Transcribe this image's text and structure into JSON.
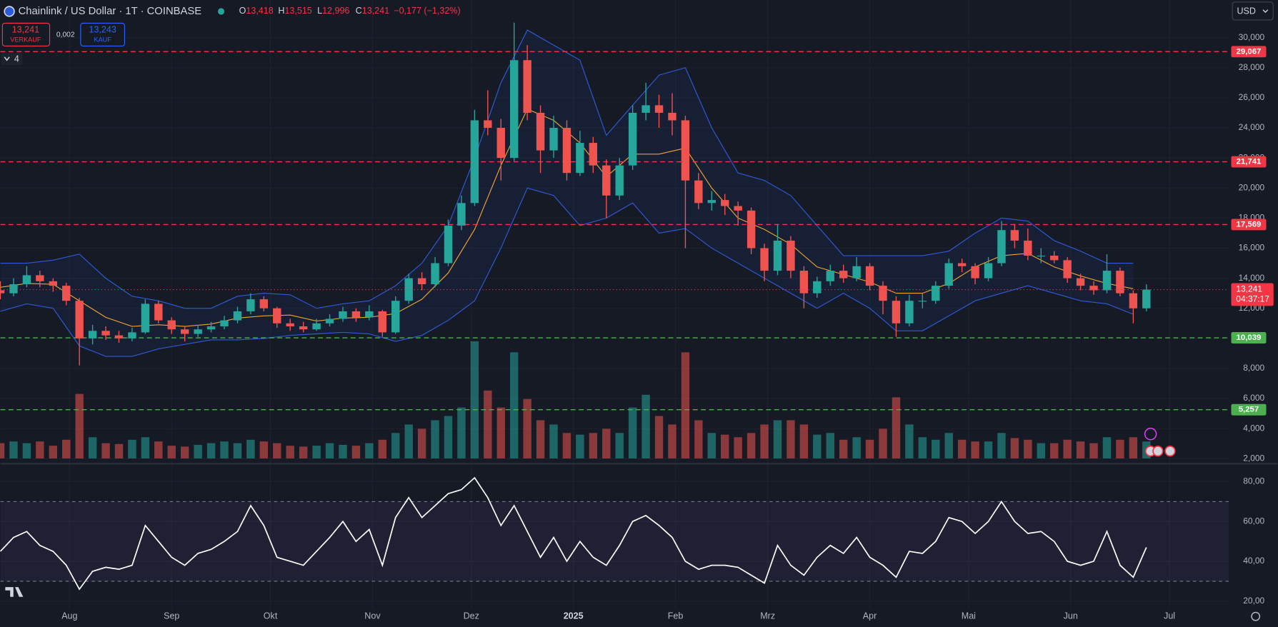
{
  "header": {
    "symbol": "Chainlink / US Dollar · 1T · COINBASE",
    "o_label": "O",
    "open": "13,418",
    "h_label": "H",
    "high": "13,515",
    "l_label": "L",
    "low": "12,996",
    "c_label": "C",
    "close": "13,241",
    "change": "−0,177 (−1,32%)"
  },
  "trade": {
    "sell_price": "13,241",
    "sell_label": "VERKAUF",
    "spread": "0,002",
    "buy_price": "13,243",
    "buy_label": "KAUF"
  },
  "indicators_count": "4",
  "currency": "USD",
  "chart_data": [
    {
      "type": "candlestick",
      "up_color": "#26a69a",
      "down_color": "#ef5350",
      "xlim": [
        0,
        373
      ],
      "ylim": [
        1.8,
        32.5
      ],
      "yticks": [
        {
          "value": 2,
          "label": "2,000"
        },
        {
          "value": 4,
          "label": "4,000"
        },
        {
          "value": 6,
          "label": "6,000"
        },
        {
          "value": 8,
          "label": "8,000"
        },
        {
          "value": 10,
          "label": "10,000"
        },
        {
          "value": 12,
          "label": "12,000"
        },
        {
          "value": 14,
          "label": "14,000"
        },
        {
          "value": 16,
          "label": "16,000"
        },
        {
          "value": 18,
          "label": "18,000"
        },
        {
          "value": 20,
          "label": "20,000"
        },
        {
          "value": 22,
          "label": "22,000"
        },
        {
          "value": 24,
          "label": "24,000"
        },
        {
          "value": 26,
          "label": "26,000"
        },
        {
          "value": 28,
          "label": "28,000"
        },
        {
          "value": 30,
          "label": "30,000"
        }
      ],
      "x": [
        0,
        4,
        8,
        12,
        16,
        20,
        24,
        28,
        32,
        36,
        40,
        44,
        48,
        52,
        56,
        60,
        64,
        68,
        72,
        76,
        80,
        84,
        88,
        92,
        96,
        100,
        104,
        108,
        112,
        116,
        120,
        124,
        128,
        132,
        136,
        140,
        144,
        148,
        152,
        156,
        160,
        164,
        168,
        172,
        176,
        180,
        184,
        188,
        192,
        196,
        200,
        204,
        208,
        212,
        216,
        220,
        224,
        228,
        232,
        236,
        240,
        244,
        248,
        252,
        256,
        260,
        264,
        268,
        272,
        276,
        280,
        284,
        288,
        292,
        296,
        300,
        304,
        308,
        312,
        316,
        320,
        324,
        328,
        332,
        336,
        340,
        344,
        348
      ],
      "ohlc": [
        [
          13.2,
          13.8,
          12.6,
          13.0
        ],
        [
          13.0,
          14.0,
          12.8,
          13.6
        ],
        [
          13.6,
          14.8,
          13.4,
          14.2
        ],
        [
          14.2,
          14.5,
          13.4,
          13.8
        ],
        [
          13.8,
          14.0,
          13.1,
          13.5
        ],
        [
          13.5,
          13.7,
          12.2,
          12.5
        ],
        [
          12.5,
          12.7,
          8.2,
          10.0
        ],
        [
          10.0,
          10.9,
          9.6,
          10.5
        ],
        [
          10.5,
          10.8,
          9.9,
          10.2
        ],
        [
          10.2,
          10.5,
          9.7,
          10.0
        ],
        [
          10.0,
          10.7,
          9.8,
          10.4
        ],
        [
          10.4,
          12.6,
          10.3,
          12.3
        ],
        [
          12.3,
          12.5,
          11.0,
          11.2
        ],
        [
          11.2,
          11.4,
          10.3,
          10.6
        ],
        [
          10.6,
          10.8,
          9.8,
          10.3
        ],
        [
          10.3,
          10.9,
          10.1,
          10.6
        ],
        [
          10.6,
          11.1,
          10.4,
          10.8
        ],
        [
          10.8,
          11.5,
          10.6,
          11.2
        ],
        [
          11.2,
          12.1,
          11.0,
          11.8
        ],
        [
          11.8,
          13.0,
          11.6,
          12.6
        ],
        [
          12.6,
          12.8,
          11.8,
          12.0
        ],
        [
          12.0,
          12.1,
          10.7,
          11.0
        ],
        [
          11.0,
          11.3,
          10.5,
          10.8
        ],
        [
          10.8,
          11.1,
          10.4,
          10.6
        ],
        [
          10.6,
          11.3,
          10.5,
          11.0
        ],
        [
          11.0,
          11.6,
          10.8,
          11.3
        ],
        [
          11.3,
          12.1,
          11.1,
          11.8
        ],
        [
          11.8,
          12.0,
          11.1,
          11.4
        ],
        [
          11.4,
          12.2,
          11.2,
          11.8
        ],
        [
          11.8,
          11.9,
          10.1,
          10.4
        ],
        [
          10.4,
          12.8,
          10.3,
          12.5
        ],
        [
          12.5,
          14.3,
          12.3,
          14.0
        ],
        [
          14.0,
          14.4,
          13.2,
          13.6
        ],
        [
          13.6,
          15.4,
          13.4,
          15.0
        ],
        [
          15.0,
          17.9,
          14.8,
          17.5
        ],
        [
          17.5,
          19.5,
          17.2,
          19.0
        ],
        [
          19.0,
          25.2,
          18.8,
          24.5
        ],
        [
          24.5,
          26.5,
          23.5,
          24.0
        ],
        [
          24.0,
          24.6,
          20.5,
          22.0
        ],
        [
          22.0,
          31.0,
          21.8,
          28.5
        ],
        [
          28.5,
          29.5,
          24.5,
          25.0
        ],
        [
          25.0,
          25.5,
          21.0,
          22.5
        ],
        [
          22.5,
          24.8,
          22.0,
          24.0
        ],
        [
          24.0,
          24.5,
          20.5,
          21.0
        ],
        [
          21.0,
          23.8,
          20.8,
          23.0
        ],
        [
          23.0,
          23.4,
          21.0,
          21.5
        ],
        [
          21.5,
          21.9,
          18.0,
          19.5
        ],
        [
          19.5,
          22.0,
          19.2,
          21.5
        ],
        [
          21.5,
          25.5,
          21.2,
          25.0
        ],
        [
          25.0,
          27.0,
          24.5,
          25.5
        ],
        [
          25.5,
          26.2,
          24.0,
          25.0
        ],
        [
          25.0,
          26.3,
          23.5,
          24.5
        ],
        [
          24.5,
          24.8,
          16.0,
          20.5
        ],
        [
          20.5,
          21.0,
          18.6,
          19.0
        ],
        [
          19.0,
          19.8,
          18.5,
          19.2
        ],
        [
          19.2,
          19.6,
          18.2,
          18.8
        ],
        [
          18.8,
          19.1,
          17.5,
          18.5
        ],
        [
          18.5,
          18.7,
          15.6,
          16.0
        ],
        [
          16.0,
          16.3,
          13.8,
          14.5
        ],
        [
          14.5,
          17.6,
          14.2,
          16.5
        ],
        [
          16.5,
          16.8,
          14.0,
          14.5
        ],
        [
          14.5,
          14.8,
          12.0,
          13.0
        ],
        [
          13.0,
          14.1,
          12.7,
          13.8
        ],
        [
          13.8,
          14.9,
          13.5,
          14.5
        ],
        [
          14.5,
          14.9,
          13.7,
          14.0
        ],
        [
          14.0,
          15.4,
          13.8,
          14.8
        ],
        [
          14.8,
          15.0,
          13.2,
          13.5
        ],
        [
          13.5,
          13.8,
          11.6,
          12.5
        ],
        [
          12.5,
          12.8,
          10.1,
          11.0
        ],
        [
          11.0,
          12.9,
          10.8,
          12.5
        ],
        [
          12.5,
          13.0,
          12.0,
          12.5
        ],
        [
          12.5,
          13.8,
          12.3,
          13.5
        ],
        [
          13.5,
          15.3,
          13.3,
          15.0
        ],
        [
          15.0,
          15.3,
          14.4,
          14.8
        ],
        [
          14.8,
          15.0,
          13.6,
          14.0
        ],
        [
          14.0,
          15.4,
          13.8,
          15.0
        ],
        [
          15.0,
          17.8,
          14.8,
          17.2
        ],
        [
          17.2,
          17.6,
          16.0,
          16.5
        ],
        [
          16.5,
          17.3,
          15.2,
          15.5
        ],
        [
          15.5,
          16.0,
          15.0,
          15.5
        ],
        [
          15.5,
          15.8,
          15.0,
          15.2
        ],
        [
          15.2,
          15.4,
          13.7,
          14.0
        ],
        [
          14.0,
          14.3,
          13.2,
          13.5
        ],
        [
          13.5,
          13.8,
          12.9,
          13.2
        ],
        [
          13.2,
          15.6,
          13.0,
          14.5
        ],
        [
          14.5,
          14.7,
          12.8,
          13.0
        ],
        [
          13.0,
          13.2,
          11.0,
          12.0
        ],
        [
          12.0,
          13.6,
          11.8,
          13.241
        ]
      ],
      "volume": {
        "ylim": [
          0,
          540
        ],
        "values": [
          18,
          20,
          18,
          20,
          15,
          22,
          76,
          25,
          18,
          17,
          22,
          25,
          20,
          15,
          14,
          16,
          18,
          20,
          18,
          22,
          20,
          18,
          15,
          14,
          15,
          18,
          16,
          15,
          18,
          22,
          30,
          40,
          35,
          45,
          50,
          60,
          138,
          80,
          60,
          125,
          70,
          45,
          40,
          30,
          28,
          30,
          35,
          30,
          60,
          75,
          50,
          40,
          125,
          45,
          30,
          28,
          25,
          30,
          40,
          45,
          45,
          40,
          28,
          30,
          22,
          25,
          22,
          35,
          72,
          40,
          25,
          22,
          30,
          22,
          20,
          20,
          30,
          24,
          22,
          18,
          18,
          22,
          20,
          18,
          25,
          22,
          25,
          20
        ]
      },
      "band": {
        "color": "#2f5bd8",
        "mid_color": "#f0a32e",
        "fill": "#2962ff",
        "x": [
          0,
          8,
          16,
          24,
          32,
          40,
          48,
          56,
          64,
          72,
          80,
          88,
          96,
          104,
          112,
          120,
          128,
          136,
          144,
          152,
          160,
          168,
          176,
          184,
          192,
          200,
          208,
          216,
          224,
          232,
          240,
          248,
          256,
          264,
          272,
          280,
          288,
          296,
          304,
          312,
          320,
          328,
          336,
          344
        ],
        "upper": [
          15.0,
          15.0,
          15.2,
          15.6,
          14.0,
          12.8,
          12.5,
          12.0,
          12.0,
          12.8,
          13.0,
          12.9,
          12.0,
          12.3,
          12.5,
          13.5,
          15.0,
          17.5,
          22.0,
          27.0,
          30.5,
          29.5,
          28.5,
          23.5,
          25.5,
          27.5,
          28.0,
          24.0,
          21.0,
          20.5,
          19.5,
          17.5,
          15.5,
          15.5,
          15.5,
          15.5,
          15.8,
          17.0,
          18.0,
          17.8,
          16.5,
          15.8,
          15.0,
          15.0
        ],
        "lower": [
          11.8,
          12.3,
          12.0,
          9.5,
          8.8,
          8.8,
          9.3,
          9.6,
          9.9,
          9.9,
          10.0,
          10.2,
          10.3,
          10.4,
          10.3,
          9.8,
          10.2,
          11.2,
          12.5,
          16.0,
          20.0,
          19.5,
          17.5,
          18.0,
          19.0,
          17.0,
          17.3,
          16.0,
          15.0,
          14.0,
          13.0,
          12.0,
          13.0,
          12.0,
          10.5,
          10.5,
          11.5,
          12.5,
          13.0,
          13.5,
          13.0,
          12.5,
          12.3,
          11.6
        ],
        "mid": [
          13.4,
          13.65,
          13.6,
          12.5,
          11.4,
          10.8,
          10.9,
          10.8,
          10.95,
          11.35,
          11.5,
          11.55,
          11.15,
          11.35,
          11.4,
          11.65,
          12.6,
          14.35,
          17.25,
          21.5,
          25.25,
          24.5,
          23.0,
          20.75,
          22.25,
          22.25,
          22.65,
          20.0,
          18.0,
          17.25,
          16.25,
          14.75,
          14.25,
          13.75,
          13.0,
          13.0,
          13.65,
          14.75,
          15.5,
          15.65,
          14.75,
          14.15,
          13.65,
          13.3
        ]
      },
      "levels": [
        {
          "value": 29.067,
          "label": "29,067",
          "color": "#f23645"
        },
        {
          "value": 21.741,
          "label": "21,741",
          "color": "#f23645"
        },
        {
          "value": 17.569,
          "label": "17,569",
          "color": "#f23645"
        },
        {
          "value": 10.039,
          "label": "10,039",
          "color": "#4caf50"
        },
        {
          "value": 5.257,
          "label": "5,257",
          "color": "#4caf50"
        }
      ],
      "last": {
        "value": 13.241,
        "label": "13,241",
        "countdown": "04:37:17",
        "color": "#f23645"
      }
    },
    {
      "type": "line",
      "color": "#ffffff",
      "band_color": "#7e57c2",
      "bands": [
        30,
        70
      ],
      "xlim": [
        0,
        373
      ],
      "ylim": [
        16,
        88
      ],
      "yticks": [
        {
          "value": 20,
          "label": "20,00"
        },
        {
          "value": 40,
          "label": "40,00"
        },
        {
          "value": 60,
          "label": "60,00"
        },
        {
          "value": 80,
          "label": "80,00"
        }
      ],
      "xticks": [
        {
          "value": 21,
          "label": "Aug"
        },
        {
          "value": 52,
          "label": "Sep"
        },
        {
          "value": 82,
          "label": "Okt"
        },
        {
          "value": 113,
          "label": "Nov"
        },
        {
          "value": 143,
          "label": "Dez"
        },
        {
          "value": 174,
          "label": "2025"
        },
        {
          "value": 205,
          "label": "Feb"
        },
        {
          "value": 233,
          "label": "Mrz"
        },
        {
          "value": 264,
          "label": "Apr"
        },
        {
          "value": 294,
          "label": "Mai"
        },
        {
          "value": 325,
          "label": "Jun"
        },
        {
          "value": 355,
          "label": "Jul"
        }
      ],
      "x": [
        0,
        4,
        8,
        12,
        16,
        20,
        24,
        28,
        32,
        36,
        40,
        44,
        48,
        52,
        56,
        60,
        64,
        68,
        72,
        76,
        80,
        84,
        88,
        92,
        96,
        100,
        104,
        108,
        112,
        116,
        120,
        124,
        128,
        132,
        136,
        140,
        144,
        148,
        152,
        156,
        160,
        164,
        168,
        172,
        176,
        180,
        184,
        188,
        192,
        196,
        200,
        204,
        208,
        212,
        216,
        220,
        224,
        228,
        232,
        236,
        240,
        244,
        248,
        252,
        256,
        260,
        264,
        268,
        272,
        276,
        280,
        284,
        288,
        292,
        296,
        300,
        304,
        308,
        312,
        316,
        320,
        324,
        328,
        332,
        336,
        340,
        344,
        348
      ],
      "values": [
        45,
        52,
        55,
        48,
        45,
        38,
        26,
        35,
        37,
        36,
        38,
        58,
        50,
        42,
        38,
        44,
        46,
        50,
        55,
        68,
        58,
        42,
        40,
        38,
        45,
        52,
        60,
        50,
        56,
        38,
        62,
        72,
        62,
        68,
        74,
        76,
        82,
        72,
        58,
        68,
        55,
        42,
        52,
        40,
        50,
        42,
        38,
        48,
        60,
        63,
        58,
        52,
        40,
        36,
        38,
        38,
        37,
        33,
        29,
        48,
        38,
        33,
        42,
        48,
        44,
        52,
        42,
        38,
        32,
        45,
        44,
        50,
        62,
        60,
        54,
        60,
        70,
        60,
        54,
        55,
        50,
        40,
        38,
        40,
        55,
        38,
        32,
        47
      ]
    }
  ]
}
